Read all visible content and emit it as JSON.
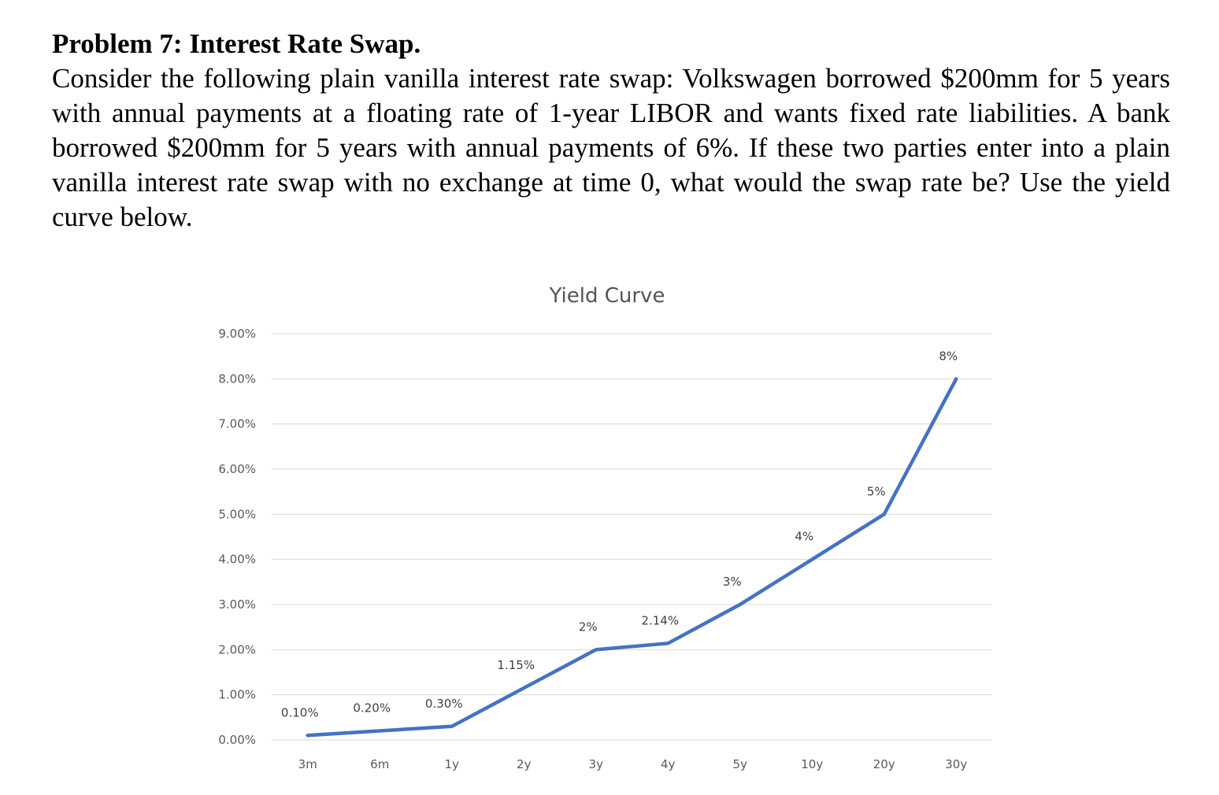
{
  "problem": {
    "title": "Problem 7: Interest Rate Swap.",
    "body": "Consider the following plain vanilla interest rate swap: Volkswagen borrowed $200mm for 5 years with annual payments at a floating rate of 1-year LIBOR and wants fixed rate liabilities. A bank borrowed $200mm for 5 years with annual payments of 6%. If these two parties enter into a plain vanilla interest rate swap with no exchange at time 0, what would the swap rate be? Use the yield curve below."
  },
  "chart_data": {
    "type": "line",
    "title": "Yield Curve",
    "xlabel": "",
    "ylabel": "",
    "categories": [
      "3m",
      "6m",
      "1y",
      "2y",
      "3y",
      "4y",
      "5y",
      "10y",
      "20y",
      "30y"
    ],
    "series": [
      {
        "values": [
          0.1,
          0.2,
          0.3,
          1.15,
          2.0,
          2.14,
          3.0,
          4.0,
          5.0,
          8.0
        ],
        "labels": [
          "0.10%",
          "0.20%",
          "0.30%",
          "1.15%",
          "2%",
          "2.14%",
          "3%",
          "4%",
          "5%",
          "8%"
        ],
        "color": "#4472c4"
      }
    ],
    "ylim": [
      0,
      9
    ],
    "yticks": [
      "0.00%",
      "1.00%",
      "2.00%",
      "3.00%",
      "4.00%",
      "5.00%",
      "6.00%",
      "7.00%",
      "8.00%",
      "9.00%"
    ],
    "grid": true,
    "legend": "none"
  }
}
